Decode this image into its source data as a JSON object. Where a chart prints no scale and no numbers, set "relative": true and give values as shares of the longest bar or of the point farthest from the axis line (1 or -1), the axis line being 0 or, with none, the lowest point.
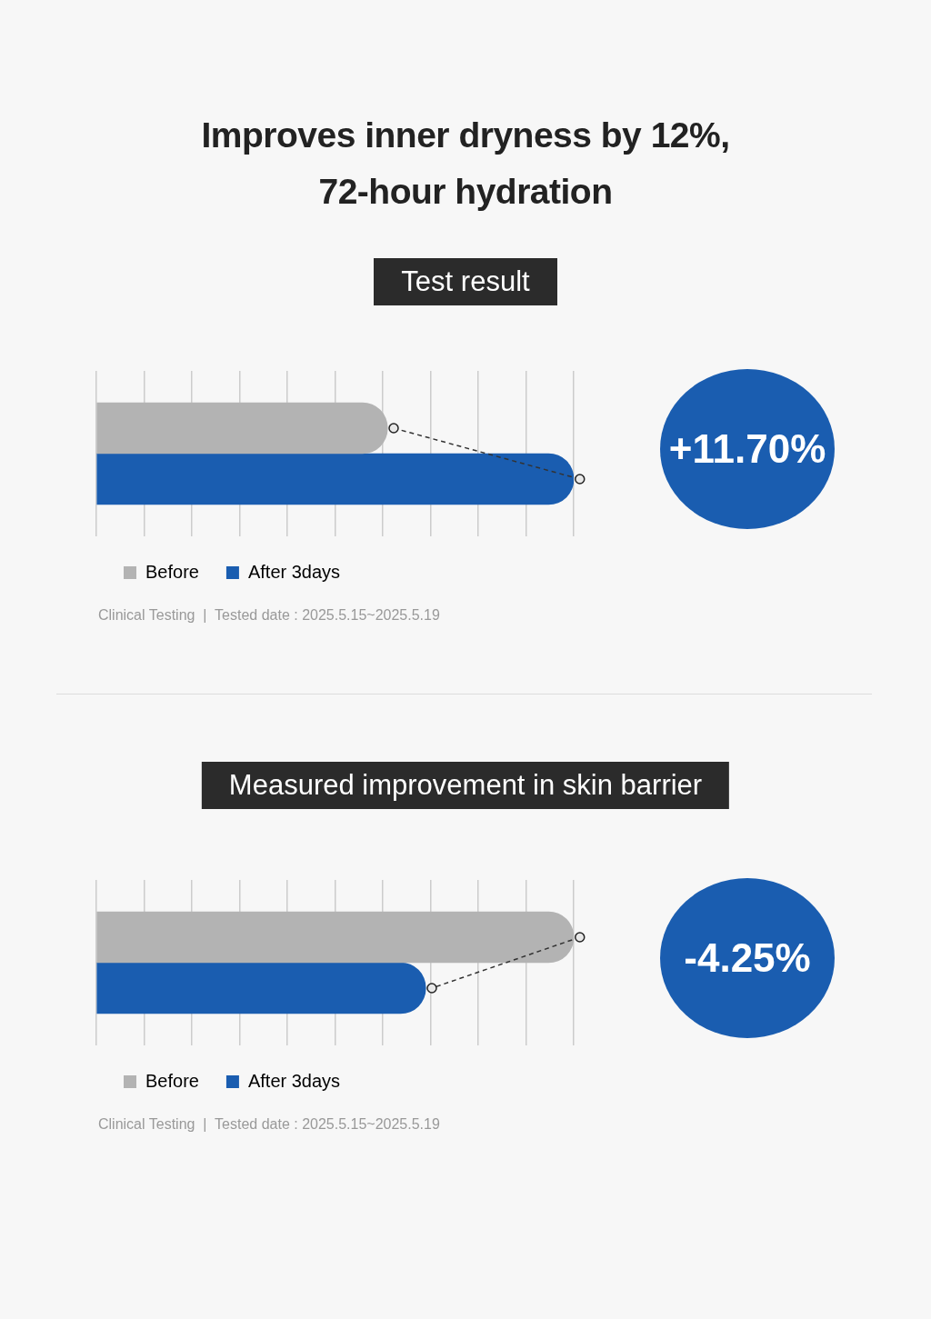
{
  "chart_data": [
    {
      "type": "bar",
      "orientation": "horizontal",
      "relative": true,
      "title": "Improves inner dryness by 12%,\n72-hour hydration",
      "subtitle": "Test result",
      "categories": [
        null
      ],
      "legend": "bottom left",
      "grid": "x",
      "series": [
        {
          "name": "Before",
          "color": "#b3b3b3",
          "values": [
            0.61
          ]
        },
        {
          "name": "After 3days",
          "color": "#1a5db0",
          "values": [
            1
          ]
        }
      ],
      "annotations": [
        "+11.70%",
        "Clinical Testing  |  Tested date : 2025.5.15~2025.5.19"
      ]
    },
    {
      "type": "bar",
      "orientation": "horizontal",
      "relative": true,
      "title": "Measured improvement in skin barrier",
      "categories": [
        null
      ],
      "legend": "bottom left",
      "grid": "x",
      "series": [
        {
          "name": "Before",
          "color": "#b3b3b3",
          "values": [
            1
          ]
        },
        {
          "name": "After 3days",
          "color": "#1a5db0",
          "values": [
            0.69
          ]
        }
      ],
      "annotations": [
        "-4.25%",
        "Clinical Testing  |  Tested date : 2025.5.15~2025.5.19"
      ]
    }
  ]
}
